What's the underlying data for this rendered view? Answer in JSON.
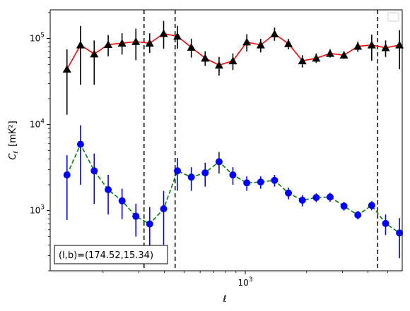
{
  "chart_data": {
    "type": "line",
    "title": "",
    "xlabel": "ℓ",
    "ylabel_main": "C",
    "ylabel_sub": "ℓ",
    "ylabel_unit": "[mK²]",
    "xscale": "log",
    "yscale": "log",
    "xlim": [
      110,
      5900
    ],
    "ylim": [
      200,
      215000
    ],
    "xticks": [
      {
        "value": 1000,
        "base": "10",
        "exp": "3"
      }
    ],
    "yticks": [
      {
        "value": 1000,
        "base": "10",
        "exp": "3"
      },
      {
        "value": 10000,
        "base": "10",
        "exp": "4"
      },
      {
        "value": 100000,
        "base": "10",
        "exp": "5"
      }
    ],
    "grid": false,
    "legend": "top-right, empty",
    "vertical_lines": [
      318,
      452,
      4470
    ],
    "annotation": "(l,b)=(174.52,15.34)",
    "series": [
      {
        "marker": "triangle",
        "marker_color": "#000000",
        "line_color": "#ff0000",
        "line_style": "solid",
        "errorbar_color": "#000000",
        "x": [
          133,
          155,
          181,
          212,
          248,
          290,
          339,
          397,
          464,
          543,
          635,
          743,
          869,
          1017,
          1190,
          1392,
          1629,
          1906,
          2230,
          2609,
          3052,
          3571,
          4178,
          4889,
          5720
        ],
        "y": [
          44000,
          84000,
          66000,
          85000,
          88000,
          92000,
          88000,
          114000,
          106000,
          79000,
          59000,
          49000,
          55000,
          91000,
          84000,
          113000,
          87000,
          55000,
          59000,
          67000,
          64000,
          81000,
          84000,
          78000,
          84000
        ],
        "y_low": [
          13000,
          29000,
          29000,
          62000,
          65000,
          56000,
          68000,
          76000,
          76000,
          60000,
          48000,
          37000,
          43000,
          71000,
          69000,
          94000,
          75000,
          46000,
          52000,
          60000,
          58000,
          70000,
          55000,
          61000,
          44000
        ],
        "y_high": [
          75000,
          140000,
          95000,
          110000,
          115000,
          130000,
          115000,
          160000,
          140000,
          99000,
          71000,
          61000,
          67000,
          112000,
          99000,
          134000,
          99000,
          64000,
          67000,
          75000,
          71000,
          92000,
          111000,
          95000,
          125000
        ]
      },
      {
        "marker": "circle",
        "marker_color": "#0000ff",
        "line_color": "#008000",
        "line_style": "dashed",
        "errorbar_color": "#0000ff",
        "x": [
          133,
          155,
          181,
          212,
          248,
          290,
          339,
          397,
          464,
          543,
          635,
          743,
          869,
          1017,
          1190,
          1392,
          1629,
          1906,
          2230,
          2609,
          3052,
          3571,
          4178,
          4889,
          5720
        ],
        "y": [
          2600,
          5900,
          2900,
          1750,
          1300,
          860,
          700,
          1050,
          2900,
          2450,
          2750,
          3700,
          2600,
          2100,
          2150,
          2250,
          1600,
          1320,
          1420,
          1440,
          1130,
          890,
          1150,
          710,
          550
        ],
        "y_low": [
          780,
          2000,
          1200,
          900,
          800,
          500,
          300,
          400,
          1700,
          1700,
          1900,
          2700,
          2000,
          1700,
          1800,
          1900,
          1350,
          1120,
          1250,
          1270,
          1000,
          790,
          1010,
          520,
          280
        ],
        "y_high": [
          4400,
          9800,
          4600,
          2600,
          1800,
          1200,
          1100,
          1700,
          4100,
          3200,
          3600,
          4800,
          3200,
          2500,
          2500,
          2600,
          1850,
          1520,
          1590,
          1610,
          1260,
          990,
          1290,
          900,
          820
        ]
      }
    ]
  }
}
